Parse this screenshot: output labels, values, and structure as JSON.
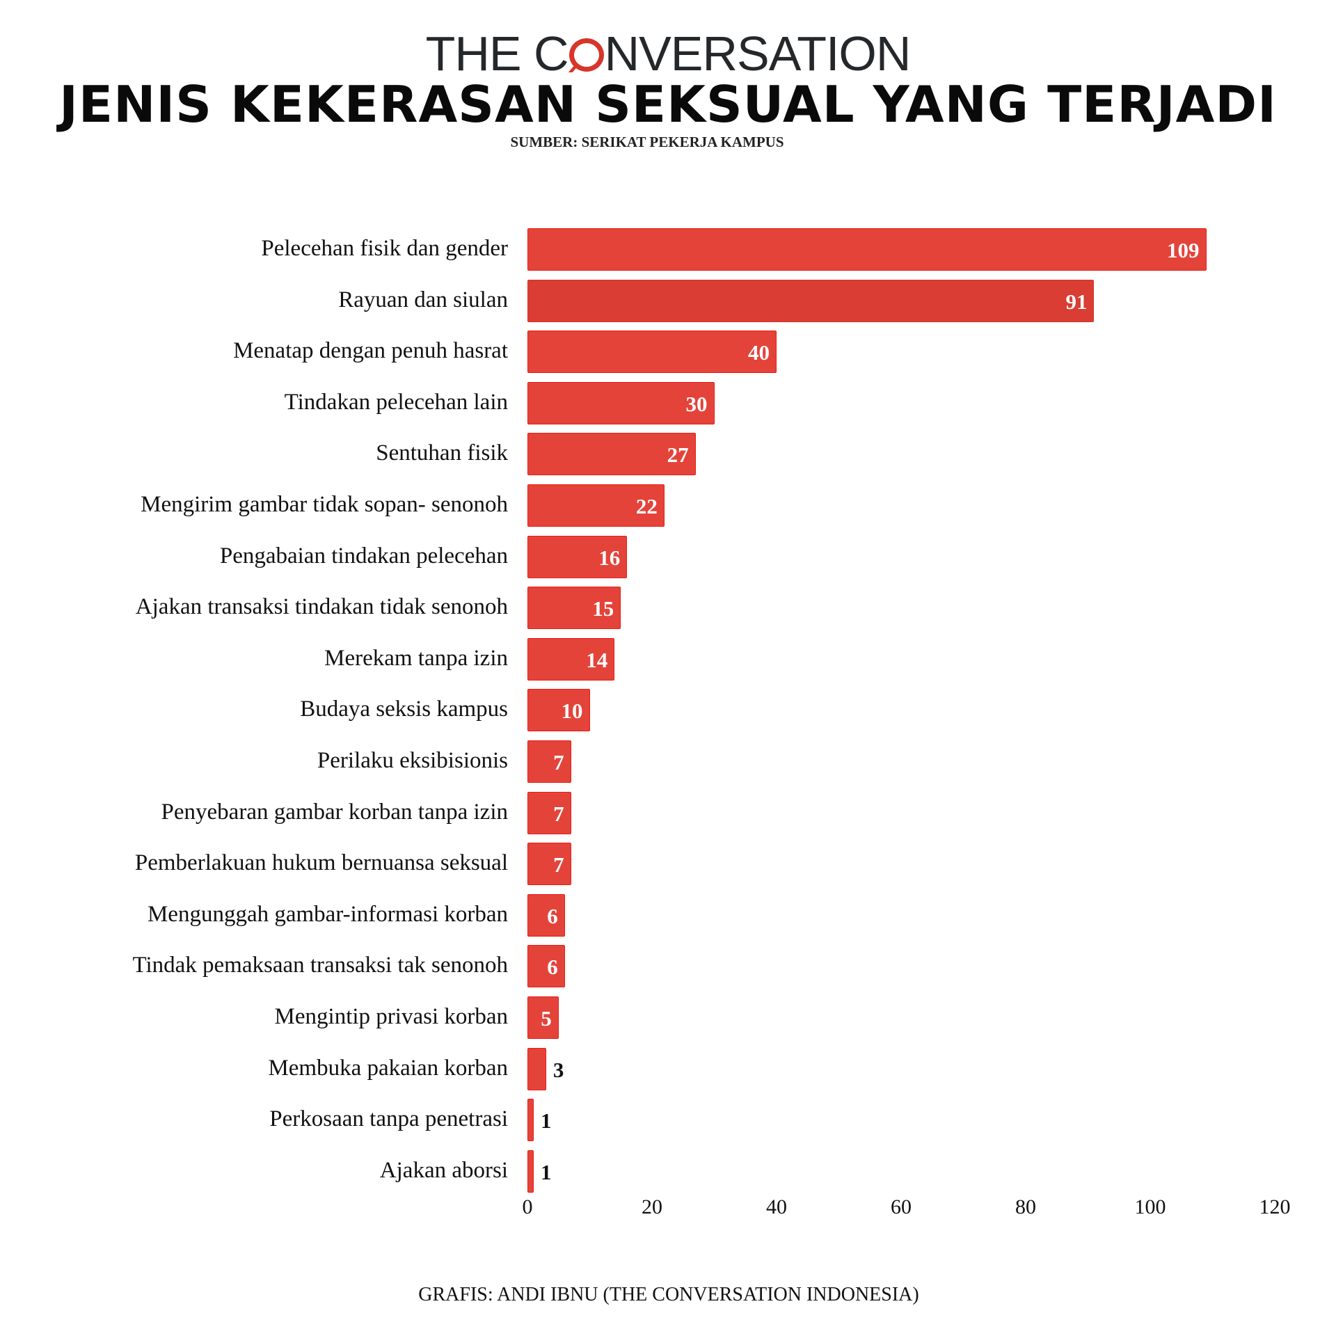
{
  "header": {
    "logo": {
      "before": "THE C",
      "after": "NVERSATION",
      "bubble_color": "#d8352a"
    },
    "title": "JENIS KEKERASAN SEKSUAL YANG TERJADI",
    "subtitle": "SUMBER: SERIKAT PEKERJA KAMPUS"
  },
  "footer": {
    "credit": "GRAFIS: ANDI IBNU (THE CONVERSATION INDONESIA)"
  },
  "colors": {
    "bar": "#e4433a",
    "bar_alt": "#d93d34",
    "bar_border": "#ea1c12",
    "text": "#111111"
  },
  "chart_data": {
    "type": "bar",
    "orientation": "horizontal",
    "title": "JENIS KEKERASAN SEKSUAL YANG TERJADI",
    "subtitle": "SUMBER: SERIKAT PEKERJA KAMPUS",
    "xlabel": "",
    "ylabel": "",
    "xlim": [
      0,
      120
    ],
    "x_ticks": [
      "0",
      "20",
      "40",
      "60",
      "80",
      "100",
      "120"
    ],
    "grid": false,
    "legend": null,
    "categories": [
      "Pelecehan fisik dan gender",
      "Rayuan dan siulan",
      "Menatap dengan penuh hasrat",
      "Tindakan pelecehan lain",
      "Sentuhan fisik",
      "Mengirim gambar tidak sopan- senonoh",
      "Pengabaian tindakan pelecehan",
      "Ajakan transaksi tindakan tidak senonoh",
      "Merekam tanpa izin",
      "Budaya seksis kampus",
      "Perilaku eksibisionis",
      "Penyebaran gambar korban tanpa izin",
      "Pemberlakuan hukum bernuansa seksual",
      "Mengunggah gambar-informasi korban",
      "Tindak pemaksaan transaksi tak senonoh",
      "Mengintip privasi korban",
      "Membuka pakaian korban",
      "Perkosaan tanpa penetrasi",
      "Ajakan aborsi"
    ],
    "values": [
      109,
      91,
      40,
      30,
      27,
      22,
      16,
      15,
      14,
      10,
      7,
      7,
      7,
      6,
      6,
      5,
      3,
      1,
      1
    ],
    "value_labels": [
      "109",
      "91",
      "40",
      "30",
      "27",
      "22",
      "16",
      "15",
      "14",
      "10",
      "7",
      "7",
      "7",
      "6",
      "6",
      "5",
      "3",
      "1",
      "1"
    ],
    "footer": "GRAFIS: ANDI IBNU (THE CONVERSATION INDONESIA)"
  }
}
